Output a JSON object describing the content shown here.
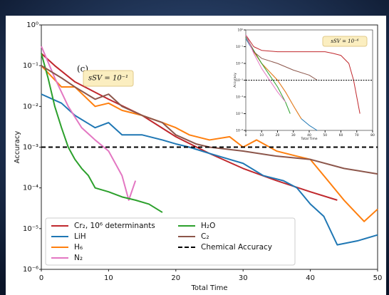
{
  "chart_data": [
    {
      "type": "line",
      "panel_label": "(c)",
      "annotation": "sSV = 10⁻¹",
      "xlabel": "Total Time",
      "ylabel": "Accuracy",
      "xlim": [
        0,
        50
      ],
      "xticks": [
        0,
        10,
        20,
        30,
        40,
        50
      ],
      "ylim": [
        1e-06,
        1
      ],
      "log_y": true,
      "yticks": [
        {
          "value": 1e-06,
          "label": "10⁻⁶"
        },
        {
          "value": 1e-05,
          "label": "10⁻⁵"
        },
        {
          "value": 0.0001,
          "label": "10⁻⁴"
        },
        {
          "value": 0.001,
          "label": "10⁻³"
        },
        {
          "value": 0.01,
          "label": "10⁻²"
        },
        {
          "value": 0.1,
          "label": "10⁻¹"
        },
        {
          "value": 1,
          "label": "10⁰"
        }
      ],
      "legend": "lower left",
      "series": [
        {
          "name": "Cr₂, 10⁶ determinants",
          "color": "#c0282d",
          "x": [
            0,
            2,
            5,
            10,
            15,
            20,
            25,
            30,
            35,
            40,
            44
          ],
          "values": [
            0.2,
            0.1,
            0.04,
            0.015,
            0.006,
            0.0018,
            0.0007,
            0.0003,
            0.00015,
            8e-05,
            5e-05
          ]
        },
        {
          "name": "LiH",
          "color": "#1f77b4",
          "x": [
            0,
            3,
            5,
            8,
            10,
            12,
            15,
            18,
            20,
            22,
            25,
            28,
            30,
            33,
            36,
            38,
            40,
            42,
            44,
            47,
            50
          ],
          "values": [
            0.02,
            0.012,
            0.006,
            0.003,
            0.004,
            0.002,
            0.002,
            0.0015,
            0.0012,
            0.001,
            0.0007,
            0.0005,
            0.0004,
            0.0002,
            0.00015,
            0.0001,
            4e-05,
            2e-05,
            4e-06,
            5e-06,
            7e-06
          ]
        },
        {
          "name": "H₆",
          "color": "#ff7f0e",
          "x": [
            0,
            3,
            5,
            8,
            10,
            12,
            15,
            18,
            20,
            22,
            25,
            28,
            30,
            32,
            35,
            38,
            40,
            42,
            45,
            48,
            50
          ],
          "values": [
            0.1,
            0.03,
            0.03,
            0.01,
            0.012,
            0.008,
            0.006,
            0.004,
            0.003,
            0.002,
            0.0015,
            0.0018,
            0.001,
            0.0015,
            0.0008,
            0.0006,
            0.0005,
            0.0002,
            5e-05,
            1.5e-05,
            3e-05
          ]
        },
        {
          "name": "N₂",
          "color": "#e377c2",
          "x": [
            0,
            2,
            4,
            6,
            8,
            10,
            12,
            13,
            14
          ],
          "values": [
            0.3,
            0.05,
            0.01,
            0.003,
            0.0015,
            0.0008,
            0.0002,
            5e-05,
            0.00015
          ]
        },
        {
          "name": "H₂O",
          "color": "#2ca02c",
          "x": [
            0,
            1,
            2,
            3,
            4,
            5,
            6,
            7,
            8,
            10,
            12,
            14,
            16,
            18
          ],
          "values": [
            0.2,
            0.05,
            0.01,
            0.003,
            0.001,
            0.0005,
            0.0003,
            0.0002,
            0.0001,
            8e-05,
            6e-05,
            5e-05,
            4e-05,
            2.5e-05
          ]
        },
        {
          "name": "C₂",
          "color": "#8c564b",
          "x": [
            0,
            3,
            5,
            8,
            10,
            12,
            15,
            18,
            20,
            23,
            25,
            30,
            35,
            40,
            45,
            50
          ],
          "values": [
            0.1,
            0.05,
            0.03,
            0.015,
            0.02,
            0.01,
            0.006,
            0.004,
            0.002,
            0.0012,
            0.001,
            0.0008,
            0.0006,
            0.0005,
            0.0003,
            0.00022
          ]
        },
        {
          "name": "Chemical Accuracy",
          "color": "#000000",
          "dash": true,
          "x": [
            0,
            50
          ],
          "values": [
            0.001,
            0.001
          ]
        }
      ]
    },
    {
      "type": "line",
      "annotation": "sSV = 10⁻⁶",
      "xlabel": "Total Time",
      "ylabel": "Accuracy",
      "xlim": [
        0,
        80
      ],
      "xticks": [
        0,
        10,
        20,
        30,
        40,
        50,
        60,
        70,
        80
      ],
      "ylim": [
        1e-06,
        1
      ],
      "log_y": true,
      "yticks": [
        {
          "value": 1e-06,
          "label": "10⁻⁶"
        },
        {
          "value": 1e-05,
          "label": "10⁻⁵"
        },
        {
          "value": 0.0001,
          "label": "10⁻⁴"
        },
        {
          "value": 0.001,
          "label": "10⁻³"
        },
        {
          "value": 0.01,
          "label": "10⁻²"
        },
        {
          "value": 0.1,
          "label": "10⁻¹"
        },
        {
          "value": 1,
          "label": "10⁰"
        }
      ],
      "series": [
        {
          "color": "#c0282d",
          "x": [
            0,
            5,
            10,
            20,
            30,
            40,
            50,
            55,
            60,
            65,
            68,
            70,
            72
          ],
          "values": [
            0.5,
            0.1,
            0.06,
            0.05,
            0.05,
            0.05,
            0.05,
            0.04,
            0.03,
            0.01,
            0.001,
            0.0001,
            1e-05
          ]
        },
        {
          "color": "#1f77b4",
          "x": [
            0,
            5,
            10,
            20,
            25,
            30,
            35,
            40,
            45
          ],
          "values": [
            0.3,
            0.05,
            0.01,
            0.001,
            0.0002,
            3e-05,
            5e-06,
            2e-06,
            1e-06
          ]
        },
        {
          "color": "#ff7f0e",
          "x": [
            0,
            5,
            10,
            20,
            25,
            30,
            33,
            35
          ],
          "values": [
            0.4,
            0.05,
            0.01,
            0.001,
            0.0002,
            3e-05,
            1e-05,
            5e-06
          ]
        },
        {
          "color": "#2ca02c",
          "x": [
            0,
            5,
            10,
            15,
            20,
            25,
            28
          ],
          "values": [
            0.4,
            0.06,
            0.01,
            0.002,
            0.0004,
            5e-05,
            1e-05
          ]
        },
        {
          "color": "#8c564b",
          "x": [
            0,
            5,
            10,
            20,
            30,
            40,
            45
          ],
          "values": [
            0.5,
            0.05,
            0.02,
            0.01,
            0.004,
            0.002,
            0.001
          ]
        },
        {
          "color": "#e377c2",
          "x": [
            0,
            5,
            10,
            15,
            20,
            25
          ],
          "values": [
            0.5,
            0.04,
            0.005,
            0.001,
            0.0002,
            5e-05
          ]
        },
        {
          "color": "#000000",
          "dash": true,
          "x": [
            0,
            80
          ],
          "values": [
            0.001,
            0.001
          ]
        }
      ]
    }
  ]
}
